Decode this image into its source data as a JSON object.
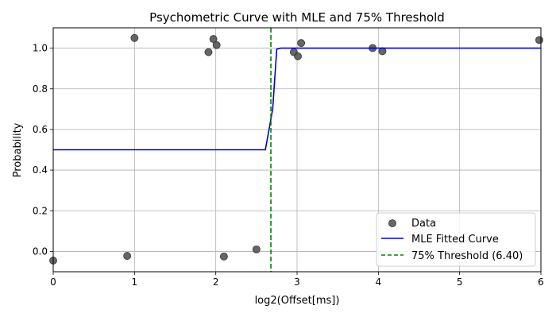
{
  "chart_data": {
    "type": "line",
    "title": "Psychometric Curve with MLE and 75% Threshold",
    "xlabel": "log2(Offset[ms])",
    "ylabel": "Probability",
    "xlim": [
      0,
      6
    ],
    "ylim": [
      -0.1,
      1.1
    ],
    "x_ticks": [
      0,
      1,
      2,
      3,
      4,
      5,
      6
    ],
    "x_tick_labels": [
      "0",
      "1",
      "2",
      "3",
      "4",
      "5",
      "6"
    ],
    "y_ticks": [
      0.0,
      0.2,
      0.4,
      0.6,
      0.8,
      1.0
    ],
    "y_tick_labels": [
      "0.0",
      "0.2",
      "0.4",
      "0.6",
      "0.8",
      "1.0"
    ],
    "grid": true,
    "legend_position": "bottom-right",
    "series": [
      {
        "name": "Data",
        "kind": "scatter",
        "color": "#555555",
        "points": [
          {
            "x": 0.0,
            "y": -0.045
          },
          {
            "x": 0.91,
            "y": -0.022
          },
          {
            "x": 1.0,
            "y": 1.05
          },
          {
            "x": 1.91,
            "y": 0.98
          },
          {
            "x": 1.97,
            "y": 1.045
          },
          {
            "x": 2.01,
            "y": 1.015
          },
          {
            "x": 2.1,
            "y": -0.025
          },
          {
            "x": 2.5,
            "y": 0.01
          },
          {
            "x": 2.96,
            "y": 0.98
          },
          {
            "x": 3.01,
            "y": 0.96
          },
          {
            "x": 3.05,
            "y": 1.025
          },
          {
            "x": 3.93,
            "y": 1.0
          },
          {
            "x": 4.05,
            "y": 0.985
          },
          {
            "x": 5.98,
            "y": 1.04
          }
        ]
      },
      {
        "name": "MLE Fitted Curve",
        "kind": "line",
        "color": "#0000cc",
        "points": [
          {
            "x": 0.0,
            "y": 0.5
          },
          {
            "x": 2.61,
            "y": 0.5
          },
          {
            "x": 2.7,
            "y": 0.7
          },
          {
            "x": 2.75,
            "y": 0.995
          },
          {
            "x": 2.8,
            "y": 1.0
          },
          {
            "x": 6.0,
            "y": 1.0
          }
        ]
      },
      {
        "name": "75% Threshold (6.40)",
        "kind": "vline",
        "color": "#008000",
        "x": 2.678
      }
    ]
  }
}
